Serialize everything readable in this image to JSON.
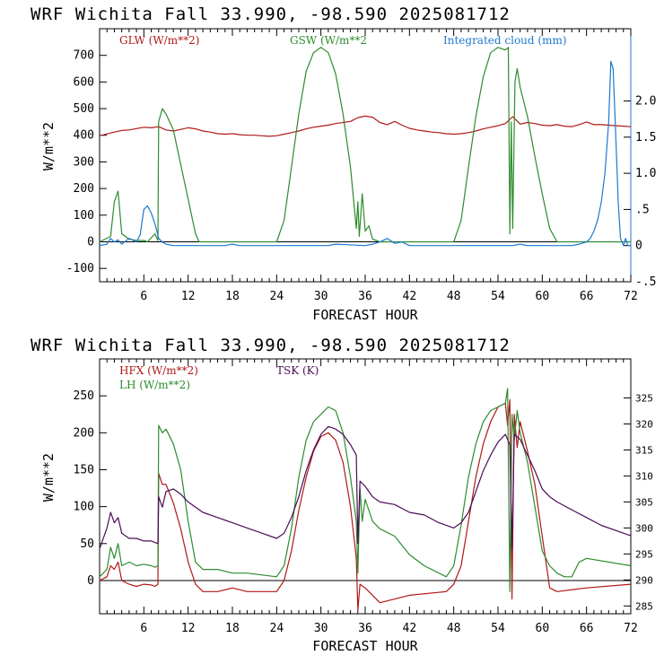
{
  "chart_data": [
    {
      "type": "line",
      "title": "WRF   Wichita Fall  33.990, -98.590  2025081712",
      "xlabel": "FORECAST HOUR",
      "ylabel": "W/m**2",
      "xlim": [
        0,
        72
      ],
      "ylim": [
        -150,
        800
      ],
      "y2lim": [
        -0.5,
        3.0
      ],
      "x_ticks": [
        "6",
        "12",
        "18",
        "24",
        "30",
        "36",
        "42",
        "48",
        "54",
        "60",
        "66",
        "72"
      ],
      "y_ticks": [
        "-100",
        "0",
        "100",
        "200",
        "300",
        "400",
        "500",
        "600",
        "700"
      ],
      "y2_ticks": [
        "-.5",
        "0",
        ".5",
        "1.0",
        "1.5",
        "2.0"
      ],
      "series": [
        {
          "name": "GLW (W/m**2)",
          "color": "#b01818",
          "axis": "left",
          "x": [
            0,
            2,
            3,
            4,
            5,
            6,
            7,
            8,
            9,
            10,
            11,
            12,
            13,
            14,
            15,
            16,
            17,
            18,
            19,
            20,
            21,
            22,
            23,
            24,
            25,
            26,
            27,
            28,
            29,
            30,
            31,
            32,
            33,
            34,
            35,
            36,
            37,
            38,
            39,
            40,
            41,
            42,
            43,
            44,
            45,
            46,
            47,
            48,
            49,
            50,
            51,
            52,
            53,
            54,
            55,
            56,
            57,
            58,
            59,
            60,
            61,
            62,
            63,
            64,
            65,
            66,
            67,
            68,
            69,
            70,
            71,
            72
          ],
          "values": [
            398,
            412,
            418,
            420,
            425,
            430,
            428,
            432,
            420,
            416,
            422,
            428,
            424,
            416,
            412,
            406,
            404,
            406,
            402,
            400,
            400,
            398,
            396,
            398,
            404,
            410,
            416,
            424,
            430,
            434,
            438,
            444,
            448,
            452,
            466,
            472,
            468,
            448,
            440,
            452,
            438,
            426,
            420,
            416,
            412,
            410,
            406,
            404,
            406,
            410,
            416,
            424,
            430,
            436,
            444,
            470,
            442,
            448,
            444,
            438,
            436,
            440,
            434,
            432,
            440,
            450,
            440,
            440,
            438,
            436,
            434,
            432
          ]
        },
        {
          "name": "GSW (W/m**2",
          "color": "#2e8b2e",
          "axis": "left",
          "x": [
            0,
            1.5,
            2,
            2.5,
            3,
            4,
            5,
            6,
            6.5,
            7,
            7.5,
            7.9,
            8,
            8.5,
            9,
            10,
            11,
            12,
            13,
            13.5,
            14,
            18,
            23,
            24,
            25,
            26,
            27,
            28,
            29,
            30,
            31,
            32,
            33,
            34,
            34.8,
            35,
            35.2,
            35.6,
            36,
            36.5,
            37,
            38,
            42,
            47,
            48,
            49,
            50,
            51,
            52,
            53,
            54,
            55,
            55.4,
            55.6,
            55.8,
            56,
            56.3,
            56.6,
            57,
            58,
            59,
            60,
            61,
            62,
            66,
            72
          ],
          "values": [
            0,
            20,
            150,
            190,
            30,
            10,
            5,
            5,
            0,
            15,
            30,
            5,
            450,
            500,
            480,
            420,
            290,
            160,
            30,
            0,
            0,
            0,
            0,
            0,
            80,
            280,
            480,
            640,
            710,
            730,
            710,
            630,
            480,
            280,
            50,
            150,
            20,
            180,
            40,
            60,
            10,
            0,
            0,
            0,
            0,
            80,
            280,
            470,
            620,
            710,
            730,
            720,
            730,
            30,
            450,
            50,
            600,
            650,
            580,
            470,
            320,
            180,
            50,
            0,
            0,
            0
          ]
        },
        {
          "name": "Integrated cloud (mm)",
          "color": "#1e78d0",
          "axis": "right",
          "x": [
            0,
            1,
            1.5,
            2,
            2.5,
            3,
            4,
            5,
            5.5,
            6,
            6.5,
            7,
            7.5,
            8,
            8.5,
            9,
            10,
            12,
            17,
            18,
            19,
            24,
            31,
            32,
            36,
            37,
            38,
            39,
            40,
            41,
            42,
            48,
            56,
            57,
            58,
            60,
            64,
            65,
            66,
            66.5,
            67,
            67.5,
            68,
            68.5,
            69,
            69.3,
            69.6,
            70,
            70.3,
            70.6,
            71,
            71.3,
            71.6,
            72
          ],
          "values": [
            0,
            0.02,
            0.1,
            0.05,
            0.08,
            0.02,
            0.1,
            0.05,
            0.15,
            0.5,
            0.55,
            0.45,
            0.3,
            0.1,
            0.05,
            0.02,
            0,
            0,
            0,
            0.02,
            0,
            0,
            0,
            0.02,
            0,
            0.02,
            0.05,
            0.1,
            0.03,
            0.05,
            0,
            0,
            0,
            0.02,
            0,
            0,
            0,
            0.02,
            0.05,
            0.1,
            0.2,
            0.35,
            0.6,
            1.0,
            1.7,
            2.55,
            2.45,
            1.4,
            0.6,
            0.1,
            0,
            0.1,
            0,
            0
          ]
        }
      ]
    },
    {
      "type": "line",
      "title": "WRF   Wichita Fall  33.990, -98.590  2025081712",
      "xlabel": "FORECAST HOUR",
      "ylabel": "W/m**2",
      "xlim": [
        0,
        72
      ],
      "ylim": [
        -45,
        300
      ],
      "y2lim": [
        283.5,
        332.5
      ],
      "x_ticks": [
        "6",
        "12",
        "18",
        "24",
        "30",
        "36",
        "42",
        "48",
        "54",
        "60",
        "66",
        "72"
      ],
      "y_ticks": [
        "0",
        "50",
        "100",
        "150",
        "200",
        "250"
      ],
      "y2_ticks": [
        "285",
        "290",
        "295",
        "300",
        "305",
        "310",
        "315",
        "320",
        "325"
      ],
      "series": [
        {
          "name": "HFX (W/m**2)",
          "color": "#b01818",
          "axis": "left",
          "x": [
            0,
            1,
            1.5,
            2,
            2.5,
            3,
            4,
            5,
            6,
            7,
            7.5,
            7.9,
            8,
            8.5,
            9,
            10,
            11,
            12,
            13,
            14,
            16,
            18,
            20,
            24,
            25,
            26,
            27,
            28,
            29,
            30,
            31,
            32,
            33,
            34,
            34.8,
            35,
            35.3,
            36,
            37,
            38,
            42,
            47,
            48,
            49,
            50,
            51,
            52,
            53,
            54,
            55,
            55.3,
            55.6,
            55.9,
            56.2,
            56.6,
            57,
            58,
            59,
            60,
            61,
            62,
            66,
            72
          ],
          "values": [
            0,
            5,
            20,
            15,
            25,
            0,
            -5,
            -8,
            -5,
            -6,
            -8,
            -5,
            145,
            130,
            130,
            105,
            70,
            25,
            -5,
            -15,
            -15,
            -10,
            -15,
            -15,
            0,
            40,
            95,
            140,
            175,
            195,
            200,
            190,
            160,
            100,
            30,
            -40,
            -5,
            -10,
            -20,
            -30,
            -20,
            -15,
            -5,
            20,
            80,
            140,
            185,
            215,
            235,
            240,
            210,
            245,
            -25,
            225,
            180,
            215,
            175,
            130,
            60,
            -10,
            -15,
            -10,
            -5
          ]
        },
        {
          "name": "LH  (W/m**2)",
          "color": "#2e8b2e",
          "axis": "left",
          "x": [
            0,
            1,
            1.5,
            2,
            2.5,
            3,
            4,
            5,
            6,
            7,
            7.5,
            7.9,
            8,
            8.5,
            9,
            10,
            11,
            12,
            13,
            14,
            16,
            18,
            20,
            24,
            25,
            26,
            27,
            28,
            29,
            30,
            31,
            32,
            33,
            34,
            34.8,
            35,
            35.3,
            35.6,
            36,
            37,
            38,
            40,
            42,
            44,
            47,
            48,
            49,
            50,
            51,
            52,
            53,
            54,
            55,
            55.3,
            55.6,
            55.9,
            56.2,
            56.6,
            57,
            58,
            59,
            60,
            61,
            62,
            63,
            64,
            65,
            66,
            72
          ],
          "values": [
            5,
            15,
            45,
            30,
            50,
            20,
            25,
            20,
            22,
            20,
            18,
            20,
            210,
            200,
            205,
            185,
            150,
            80,
            25,
            15,
            15,
            10,
            10,
            5,
            20,
            70,
            140,
            190,
            215,
            225,
            235,
            230,
            200,
            140,
            80,
            10,
            125,
            80,
            110,
            80,
            70,
            60,
            35,
            20,
            5,
            20,
            75,
            140,
            185,
            215,
            230,
            235,
            240,
            260,
            -15,
            225,
            190,
            230,
            200,
            160,
            100,
            40,
            20,
            10,
            5,
            5,
            25,
            30,
            20
          ]
        },
        {
          "name": "TSK (K)",
          "color": "#4b0d57",
          "axis": "right",
          "x": [
            0,
            1,
            1.5,
            2,
            2.5,
            3,
            4,
            5,
            6,
            7,
            7.9,
            8,
            8.5,
            9,
            10,
            11,
            12,
            13,
            14,
            16,
            18,
            20,
            22,
            24,
            25,
            26,
            27,
            28,
            29,
            30,
            31,
            32,
            33,
            34,
            34.8,
            35,
            35.3,
            36,
            37,
            38,
            40,
            42,
            44,
            46,
            48,
            49,
            50,
            51,
            52,
            53,
            54,
            55,
            55.3,
            55.6,
            55.9,
            56.2,
            57,
            58,
            59,
            60,
            61,
            62,
            64,
            66,
            68,
            70,
            72
          ],
          "values": [
            296,
            300,
            303,
            301,
            302,
            299,
            298,
            298,
            297.5,
            297.5,
            297,
            306,
            304,
            307,
            307.5,
            306.5,
            305,
            304,
            303,
            302,
            301,
            300,
            299,
            298,
            299,
            302,
            306,
            311,
            315,
            318,
            319.5,
            319,
            318,
            316,
            314,
            297,
            309,
            308,
            306,
            305,
            304.5,
            303,
            302.5,
            301,
            300,
            301,
            303,
            307,
            311,
            314,
            316.5,
            318,
            317,
            316,
            296,
            318,
            317,
            314,
            311,
            307.5,
            306,
            305,
            303.5,
            302,
            300.5,
            299.5,
            298.5
          ]
        }
      ]
    }
  ]
}
